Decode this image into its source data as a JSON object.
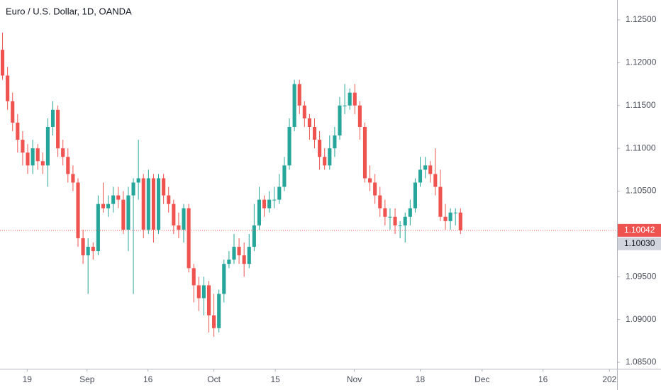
{
  "chart_data": {
    "type": "candlestick",
    "title": "Euro / U.S. Dollar, 1D, OANDA",
    "up_color": "#26a69a",
    "down_color": "#ef5350",
    "xlim": [
      -0.5,
      122.1
    ],
    "xticks": [
      {
        "value": 4.9,
        "label": "19"
      },
      {
        "value": 16.8,
        "label": "Sep"
      },
      {
        "value": 28.9,
        "label": "16"
      },
      {
        "value": 42.0,
        "label": "Oct"
      },
      {
        "value": 54.2,
        "label": "15"
      },
      {
        "value": 69.9,
        "label": "Nov"
      },
      {
        "value": 83.0,
        "label": "18"
      },
      {
        "value": 95.3,
        "label": "Dec"
      },
      {
        "value": 107.4,
        "label": "16"
      },
      {
        "value": 120.6,
        "label": "202"
      }
    ],
    "ylim": [
      1.08426,
      1.12732
    ],
    "yticks": [
      {
        "value": 1.085,
        "label": "1.08500"
      },
      {
        "value": 1.09,
        "label": "1.09000"
      },
      {
        "value": 1.095,
        "label": "1.09500"
      },
      {
        "value": 1.1,
        "label": "1.10000"
      },
      {
        "value": 1.105,
        "label": "1.10500"
      },
      {
        "value": 1.11,
        "label": "1.11000"
      },
      {
        "value": 1.115,
        "label": "1.11500"
      },
      {
        "value": 1.12,
        "label": "1.12000"
      },
      {
        "value": 1.125,
        "label": "1.12500"
      }
    ],
    "last_price": 1.10042,
    "secondary_price": {
      "value": 1.1003,
      "label": "1.10030"
    },
    "open": [
      1.1215,
      1.1185,
      1.1155,
      1.113,
      1.111,
      1.1095,
      1.108,
      1.11,
      1.1085,
      1.108,
      1.1125,
      1.1145,
      1.11,
      1.109,
      1.107,
      1.106,
      1.0995,
      1.0975,
      1.0985,
      1.098,
      1.1035,
      1.103,
      1.1035,
      1.1045,
      1.104,
      1.1005,
      1.1045,
      1.106,
      1.1065,
      1.1005,
      1.1065,
      1.1005,
      1.1065,
      1.1045,
      1.1035,
      1.101,
      1.1005,
      1.103,
      1.096,
      1.094,
      1.0925,
      1.094,
      1.0905,
      1.089,
      1.093,
      1.0965,
      1.097,
      1.0985,
      1.0975,
      1.0965,
      1.0985,
      1.101,
      1.104,
      1.103,
      1.104,
      1.104,
      1.1055,
      1.108,
      1.1125,
      1.1175,
      1.115,
      1.1135,
      1.1125,
      1.111,
      1.109,
      1.108,
      1.11,
      1.1115,
      1.115,
      1.115,
      1.1165,
      1.115,
      1.1125,
      1.1065,
      1.106,
      1.1045,
      1.103,
      1.102,
      1.102,
      1.101,
      1.101,
      1.102,
      1.103,
      1.106,
      1.1075,
      1.108,
      1.107,
      1.1055,
      1.102,
      1.1015,
      1.1025,
      1.1025
    ],
    "high": [
      1.1235,
      1.1195,
      1.1165,
      1.114,
      1.112,
      1.1105,
      1.111,
      1.1105,
      1.1095,
      1.1135,
      1.1155,
      1.115,
      1.111,
      1.11,
      1.108,
      1.1065,
      1.1005,
      1.0995,
      1.099,
      1.1045,
      1.106,
      1.1045,
      1.1055,
      1.1055,
      1.105,
      1.1055,
      1.1065,
      1.111,
      1.107,
      1.1075,
      1.107,
      1.107,
      1.107,
      1.1055,
      1.104,
      1.1025,
      1.1035,
      1.1035,
      1.0965,
      1.095,
      1.095,
      1.0945,
      1.093,
      1.0935,
      1.097,
      1.098,
      1.1,
      1.0995,
      1.099,
      1.1,
      1.1035,
      1.1055,
      1.1045,
      1.105,
      1.1055,
      1.107,
      1.109,
      1.1135,
      1.118,
      1.118,
      1.1155,
      1.114,
      1.1135,
      1.112,
      1.11,
      1.1115,
      1.1125,
      1.116,
      1.1175,
      1.117,
      1.1175,
      1.1155,
      1.113,
      1.108,
      1.107,
      1.1055,
      1.104,
      1.103,
      1.103,
      1.1015,
      1.1025,
      1.104,
      1.1065,
      1.109,
      1.109,
      1.1085,
      1.11,
      1.1075,
      1.1035,
      1.103,
      1.103,
      1.103
    ],
    "low": [
      1.118,
      1.1145,
      1.112,
      1.1095,
      1.108,
      1.107,
      1.107,
      1.1075,
      1.107,
      1.1055,
      1.1115,
      1.109,
      1.108,
      1.106,
      1.105,
      1.0985,
      1.0965,
      1.093,
      1.097,
      1.0975,
      1.1025,
      1.102,
      1.1025,
      1.103,
      1.1,
      1.098,
      1.093,
      1.104,
      1.0995,
      1.1,
      1.099,
      1.1,
      1.1035,
      1.1025,
      1.1,
      1.0995,
      1.099,
      1.0955,
      1.092,
      1.091,
      1.0905,
      1.0885,
      1.088,
      1.0885,
      1.092,
      1.096,
      1.0965,
      1.0965,
      1.095,
      1.096,
      1.098,
      1.1005,
      1.102,
      1.1025,
      1.103,
      1.1035,
      1.105,
      1.1075,
      1.112,
      1.114,
      1.1125,
      1.111,
      1.11,
      1.1075,
      1.1075,
      1.1075,
      1.109,
      1.111,
      1.114,
      1.1145,
      1.114,
      1.111,
      1.106,
      1.105,
      1.1035,
      1.102,
      1.101,
      1.1005,
      1.1,
      1.0995,
      1.099,
      1.101,
      1.1025,
      1.1055,
      1.1065,
      1.106,
      1.1045,
      1.1015,
      1.1005,
      1.1005,
      1.101,
      1.1
    ],
    "close": [
      1.1185,
      1.1155,
      1.113,
      1.111,
      1.1095,
      1.108,
      1.11,
      1.1085,
      1.108,
      1.1125,
      1.1145,
      1.11,
      1.109,
      1.107,
      1.106,
      1.0995,
      1.0975,
      1.0985,
      1.098,
      1.1035,
      1.103,
      1.1035,
      1.1045,
      1.104,
      1.1005,
      1.1045,
      1.106,
      1.1065,
      1.1005,
      1.1065,
      1.1005,
      1.1065,
      1.1045,
      1.1035,
      1.101,
      1.1005,
      1.103,
      1.096,
      1.094,
      1.0925,
      1.094,
      1.0905,
      1.089,
      1.093,
      1.0965,
      1.097,
      1.0985,
      1.0975,
      1.0965,
      1.0985,
      1.101,
      1.104,
      1.103,
      1.104,
      1.104,
      1.1055,
      1.108,
      1.1125,
      1.1175,
      1.115,
      1.1135,
      1.1125,
      1.111,
      1.109,
      1.108,
      1.11,
      1.1115,
      1.115,
      1.115,
      1.1165,
      1.115,
      1.1125,
      1.1065,
      1.106,
      1.1045,
      1.103,
      1.102,
      1.102,
      1.101,
      1.101,
      1.102,
      1.103,
      1.106,
      1.1075,
      1.108,
      1.107,
      1.1055,
      1.102,
      1.1015,
      1.1025,
      1.1025,
      1.10042
    ]
  }
}
